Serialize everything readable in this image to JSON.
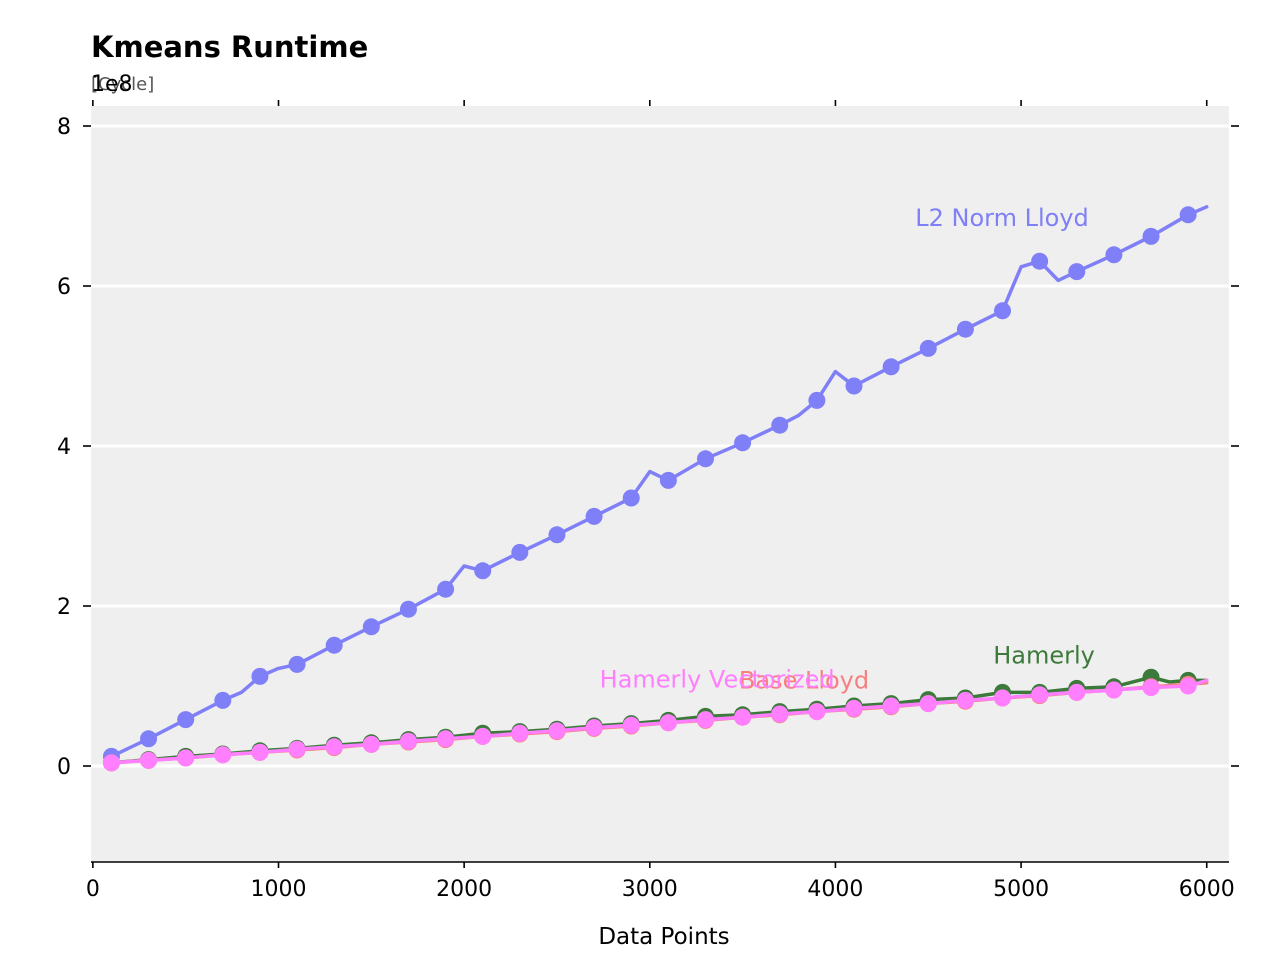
{
  "chart_data": {
    "type": "line",
    "title": "Kmeans Runtime",
    "subtitle": "[Cycle]",
    "y_exponent_label": "1e8",
    "xlabel": "Data Points",
    "ylabel": "",
    "xlim": [
      -10,
      6120
    ],
    "ylim": [
      -1.2,
      8.25
    ],
    "y_scale_factor": 100000000,
    "x_ticks": [
      0,
      1000,
      2000,
      3000,
      4000,
      5000,
      6000
    ],
    "x_tick_labels": [
      "0",
      "1000",
      "2000",
      "3000",
      "4000",
      "5000",
      "6000"
    ],
    "y_ticks": [
      0,
      2,
      4,
      6,
      8
    ],
    "y_tick_labels": [
      "0",
      "2",
      "4",
      "6",
      "8"
    ],
    "grid": "horizontal",
    "background": "#efefef",
    "marker_x": [
      100,
      300,
      500,
      700,
      900,
      1100,
      1300,
      1500,
      1700,
      1900,
      2100,
      2300,
      2500,
      2700,
      2900,
      3100,
      3300,
      3500,
      3700,
      3900,
      4100,
      4300,
      4500,
      4700,
      4900,
      5100,
      5300,
      5500,
      5700,
      5900
    ],
    "series": [
      {
        "name": "L2 Norm Lloyd",
        "color": "#7f7ff7",
        "label_anchor": [
          4430,
          6.85
        ],
        "line": [
          [
            100,
            0.12
          ],
          [
            300,
            0.34
          ],
          [
            500,
            0.58
          ],
          [
            700,
            0.82
          ],
          [
            800,
            0.92
          ],
          [
            900,
            1.12
          ],
          [
            1000,
            1.22
          ],
          [
            1100,
            1.27
          ],
          [
            1300,
            1.51
          ],
          [
            1500,
            1.74
          ],
          [
            1700,
            1.96
          ],
          [
            1900,
            2.21
          ],
          [
            2000,
            2.5
          ],
          [
            2100,
            2.44
          ],
          [
            2300,
            2.67
          ],
          [
            2500,
            2.89
          ],
          [
            2700,
            3.12
          ],
          [
            2900,
            3.35
          ],
          [
            3000,
            3.68
          ],
          [
            3100,
            3.57
          ],
          [
            3300,
            3.84
          ],
          [
            3500,
            4.04
          ],
          [
            3700,
            4.26
          ],
          [
            3800,
            4.38
          ],
          [
            3900,
            4.57
          ],
          [
            4000,
            4.93
          ],
          [
            4100,
            4.75
          ],
          [
            4300,
            4.99
          ],
          [
            4500,
            5.22
          ],
          [
            4700,
            5.46
          ],
          [
            4900,
            5.69
          ],
          [
            5000,
            6.24
          ],
          [
            5100,
            6.31
          ],
          [
            5200,
            6.07
          ],
          [
            5300,
            6.18
          ],
          [
            5500,
            6.39
          ],
          [
            5700,
            6.62
          ],
          [
            5900,
            6.89
          ],
          [
            6000,
            6.99
          ]
        ],
        "markers": [
          0.12,
          0.34,
          0.58,
          0.82,
          1.12,
          1.27,
          1.51,
          1.74,
          1.96,
          2.21,
          2.44,
          2.67,
          2.89,
          3.12,
          3.35,
          3.57,
          3.84,
          4.04,
          4.26,
          4.57,
          4.75,
          4.99,
          5.22,
          5.46,
          5.69,
          6.31,
          6.18,
          6.39,
          6.62,
          6.89
        ]
      },
      {
        "name": "Hamerly",
        "color": "#3b7a3b",
        "label_anchor": [
          4850,
          1.38
        ],
        "line": [
          [
            100,
            0.04
          ],
          [
            300,
            0.08
          ],
          [
            500,
            0.12
          ],
          [
            700,
            0.15
          ],
          [
            900,
            0.19
          ],
          [
            1100,
            0.22
          ],
          [
            1300,
            0.26
          ],
          [
            1500,
            0.29
          ],
          [
            1700,
            0.33
          ],
          [
            1900,
            0.36
          ],
          [
            2100,
            0.41
          ],
          [
            2300,
            0.43
          ],
          [
            2500,
            0.46
          ],
          [
            2700,
            0.5
          ],
          [
            2900,
            0.53
          ],
          [
            3100,
            0.57
          ],
          [
            3300,
            0.62
          ],
          [
            3500,
            0.64
          ],
          [
            3700,
            0.68
          ],
          [
            3900,
            0.71
          ],
          [
            4100,
            0.75
          ],
          [
            4300,
            0.78
          ],
          [
            4500,
            0.83
          ],
          [
            4700,
            0.85
          ],
          [
            4900,
            0.92
          ],
          [
            5100,
            0.92
          ],
          [
            5300,
            0.97
          ],
          [
            5500,
            0.99
          ],
          [
            5700,
            1.11
          ],
          [
            5800,
            1.05
          ],
          [
            5900,
            1.07
          ],
          [
            6000,
            1.07
          ]
        ],
        "markers": [
          0.04,
          0.08,
          0.12,
          0.15,
          0.19,
          0.22,
          0.26,
          0.29,
          0.33,
          0.36,
          0.41,
          0.43,
          0.46,
          0.5,
          0.53,
          0.57,
          0.62,
          0.64,
          0.68,
          0.71,
          0.75,
          0.78,
          0.83,
          0.85,
          0.92,
          0.92,
          0.97,
          0.99,
          1.11,
          1.07
        ]
      },
      {
        "name": "Base Lloyd",
        "color": "#f77f7f",
        "label_anchor": [
          3480,
          1.07
        ],
        "line": [
          [
            100,
            0.04
          ],
          [
            300,
            0.07
          ],
          [
            500,
            0.1
          ],
          [
            700,
            0.14
          ],
          [
            900,
            0.17
          ],
          [
            1100,
            0.2
          ],
          [
            1300,
            0.23
          ],
          [
            1500,
            0.27
          ],
          [
            1700,
            0.3
          ],
          [
            1900,
            0.33
          ],
          [
            2100,
            0.37
          ],
          [
            2300,
            0.4
          ],
          [
            2500,
            0.43
          ],
          [
            2700,
            0.47
          ],
          [
            2900,
            0.5
          ],
          [
            3100,
            0.54
          ],
          [
            3300,
            0.57
          ],
          [
            3500,
            0.61
          ],
          [
            3700,
            0.64
          ],
          [
            3900,
            0.68
          ],
          [
            4100,
            0.71
          ],
          [
            4300,
            0.74
          ],
          [
            4500,
            0.78
          ],
          [
            4700,
            0.81
          ],
          [
            4900,
            0.85
          ],
          [
            5100,
            0.88
          ],
          [
            5300,
            0.92
          ],
          [
            5500,
            0.95
          ],
          [
            5700,
            0.99
          ],
          [
            5900,
            1.02
          ],
          [
            6000,
            1.04
          ]
        ],
        "markers": [
          0.04,
          0.07,
          0.1,
          0.14,
          0.17,
          0.2,
          0.23,
          0.27,
          0.3,
          0.33,
          0.37,
          0.4,
          0.43,
          0.47,
          0.5,
          0.54,
          0.57,
          0.61,
          0.64,
          0.68,
          0.71,
          0.74,
          0.78,
          0.81,
          0.85,
          0.88,
          0.92,
          0.95,
          0.99,
          1.02
        ]
      },
      {
        "name": "Hamerly Vectorized",
        "color": "#ff7fff",
        "label_anchor": [
          2730,
          1.08
        ],
        "line": [
          [
            100,
            0.04
          ],
          [
            300,
            0.07
          ],
          [
            500,
            0.1
          ],
          [
            700,
            0.14
          ],
          [
            900,
            0.17
          ],
          [
            1100,
            0.21
          ],
          [
            1300,
            0.24
          ],
          [
            1500,
            0.27
          ],
          [
            1700,
            0.31
          ],
          [
            1900,
            0.34
          ],
          [
            2100,
            0.37
          ],
          [
            2300,
            0.41
          ],
          [
            2500,
            0.44
          ],
          [
            2700,
            0.48
          ],
          [
            2900,
            0.51
          ],
          [
            3100,
            0.54
          ],
          [
            3300,
            0.58
          ],
          [
            3500,
            0.61
          ],
          [
            3700,
            0.65
          ],
          [
            3900,
            0.68
          ],
          [
            4100,
            0.72
          ],
          [
            4300,
            0.75
          ],
          [
            4500,
            0.78
          ],
          [
            4700,
            0.82
          ],
          [
            4900,
            0.85
          ],
          [
            5100,
            0.89
          ],
          [
            5300,
            0.92
          ],
          [
            5500,
            0.95
          ],
          [
            5700,
            0.98
          ],
          [
            5900,
            1.0
          ],
          [
            6000,
            1.07
          ]
        ],
        "markers": [
          0.04,
          0.07,
          0.1,
          0.14,
          0.17,
          0.21,
          0.24,
          0.27,
          0.31,
          0.34,
          0.37,
          0.41,
          0.44,
          0.48,
          0.51,
          0.54,
          0.58,
          0.61,
          0.65,
          0.68,
          0.72,
          0.75,
          0.78,
          0.82,
          0.85,
          0.89,
          0.92,
          0.95,
          0.98,
          1.0
        ]
      }
    ]
  }
}
